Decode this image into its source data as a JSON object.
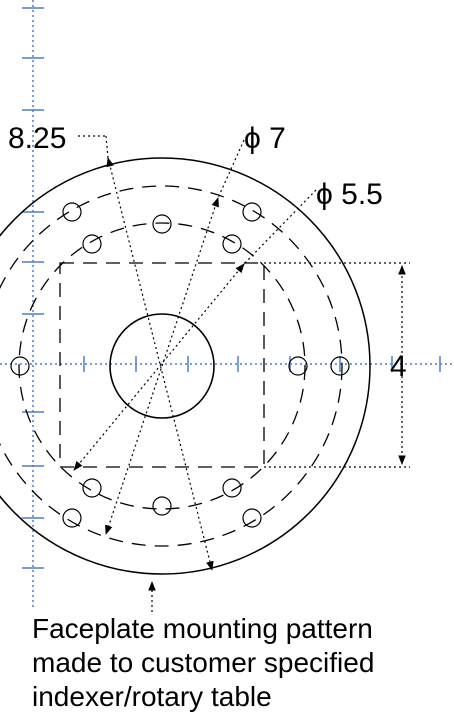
{
  "dimensions": {
    "outer_diameter_label": "8.25",
    "bolt_circle_outer_label": "ϕ 7",
    "bolt_circle_inner_label": "ϕ 5.5",
    "square_label": "4"
  },
  "note_lines": [
    "Faceplate mounting pattern",
    "made to customer specified",
    "indexer/rotary table"
  ],
  "colors": {
    "centerline": "#4a7fc8",
    "outline": "#000000"
  }
}
